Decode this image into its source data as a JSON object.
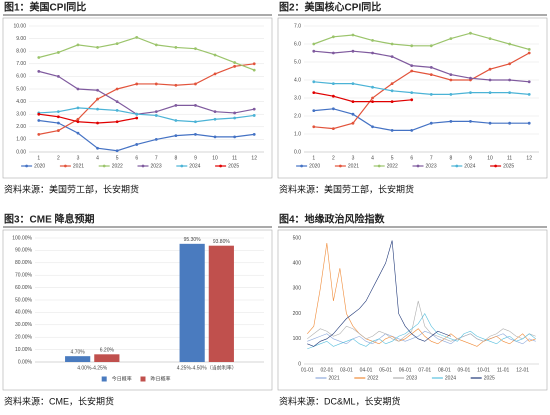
{
  "chart_data": [
    {
      "type": "line",
      "title": "图1：美国CPI同比",
      "source": "资料来源：美国劳工部，长安期货",
      "markers": true,
      "grid": true,
      "legend": "bottom",
      "categories": [
        "1",
        "2",
        "3",
        "4",
        "5",
        "6",
        "7",
        "8",
        "9",
        "10",
        "11",
        "12"
      ],
      "ylim": [
        0,
        10
      ],
      "yticks": [
        {
          "value": 0,
          "label": "0.00"
        },
        {
          "value": 1,
          "label": "1.00"
        },
        {
          "value": 2,
          "label": "2.00"
        },
        {
          "value": 3,
          "label": "3.00"
        },
        {
          "value": 4,
          "label": "4.00"
        },
        {
          "value": 5,
          "label": "5.00"
        },
        {
          "value": 6,
          "label": "6.00"
        },
        {
          "value": 7,
          "label": "7.00"
        },
        {
          "value": 8,
          "label": "8.00"
        },
        {
          "value": 9,
          "label": "9.00"
        },
        {
          "value": 10,
          "label": "10.00"
        }
      ],
      "series": [
        {
          "name": "2020",
          "color": "#4472c4",
          "values": [
            2.5,
            2.3,
            1.5,
            0.3,
            0.1,
            0.6,
            1.0,
            1.3,
            1.4,
            1.2,
            1.2,
            1.4
          ]
        },
        {
          "name": "2021",
          "color": "#e2533b",
          "values": [
            1.4,
            1.7,
            2.6,
            4.2,
            5.0,
            5.4,
            5.4,
            5.3,
            5.4,
            6.2,
            6.8,
            7.0
          ]
        },
        {
          "name": "2022",
          "color": "#9bc46b",
          "values": [
            7.5,
            7.9,
            8.5,
            8.3,
            8.6,
            9.1,
            8.5,
            8.3,
            8.2,
            7.7,
            7.1,
            6.5
          ]
        },
        {
          "name": "2023",
          "color": "#7f5a9e",
          "values": [
            6.4,
            6.0,
            5.0,
            4.9,
            4.0,
            3.0,
            3.2,
            3.7,
            3.7,
            3.2,
            3.1,
            3.4
          ]
        },
        {
          "name": "2024",
          "color": "#4bb3d6",
          "values": [
            3.1,
            3.2,
            3.5,
            3.4,
            3.3,
            3.0,
            2.9,
            2.5,
            2.4,
            2.6,
            2.7,
            2.9
          ]
        },
        {
          "name": "2025",
          "color": "#e00000",
          "values": [
            3.0,
            2.8,
            2.4,
            2.3,
            2.4,
            2.7,
            null,
            null,
            null,
            null,
            null,
            null
          ]
        }
      ]
    },
    {
      "type": "line",
      "title": "图2：美国核心CPI同比",
      "source": "资料来源：美国劳工部，长安期货",
      "markers": true,
      "grid": true,
      "legend": "bottom",
      "categories": [
        "1",
        "2",
        "3",
        "4",
        "5",
        "6",
        "7",
        "8",
        "9",
        "10",
        "11",
        "12"
      ],
      "ylim": [
        0,
        7
      ],
      "yticks": [
        {
          "value": 0,
          "label": "0.0"
        },
        {
          "value": 1,
          "label": "1.0"
        },
        {
          "value": 2,
          "label": "2.0"
        },
        {
          "value": 3,
          "label": "3.0"
        },
        {
          "value": 4,
          "label": "4.0"
        },
        {
          "value": 5,
          "label": "5.0"
        },
        {
          "value": 6,
          "label": "6.0"
        },
        {
          "value": 7,
          "label": "7.0"
        }
      ],
      "series": [
        {
          "name": "2020",
          "color": "#4472c4",
          "values": [
            2.3,
            2.4,
            2.1,
            1.4,
            1.2,
            1.2,
            1.6,
            1.7,
            1.7,
            1.6,
            1.6,
            1.6
          ]
        },
        {
          "name": "2021",
          "color": "#e2533b",
          "values": [
            1.4,
            1.3,
            1.6,
            3.0,
            3.8,
            4.5,
            4.3,
            4.0,
            4.0,
            4.6,
            4.9,
            5.5
          ]
        },
        {
          "name": "2022",
          "color": "#9bc46b",
          "values": [
            6.0,
            6.4,
            6.5,
            6.2,
            6.0,
            5.9,
            5.9,
            6.3,
            6.6,
            6.3,
            6.0,
            5.7
          ]
        },
        {
          "name": "2023",
          "color": "#7f5a9e",
          "values": [
            5.6,
            5.5,
            5.6,
            5.5,
            5.3,
            4.8,
            4.7,
            4.3,
            4.1,
            4.0,
            4.0,
            3.9
          ]
        },
        {
          "name": "2024",
          "color": "#4bb3d6",
          "values": [
            3.9,
            3.8,
            3.8,
            3.6,
            3.4,
            3.3,
            3.2,
            3.2,
            3.3,
            3.3,
            3.3,
            3.2
          ]
        },
        {
          "name": "2025",
          "color": "#e00000",
          "values": [
            3.3,
            3.1,
            2.8,
            2.8,
            2.8,
            2.9,
            null,
            null,
            null,
            null,
            null,
            null
          ]
        }
      ]
    },
    {
      "type": "bar",
      "title": "图3：CME 降息预期",
      "source": "资料来源：CME，长安期货",
      "grid": true,
      "legend": "bottom",
      "categories": [
        "4.00%-4.25%",
        "4.25%-4.50%（当前利率）"
      ],
      "ylim": [
        0,
        100
      ],
      "yticks": [
        {
          "value": 0,
          "label": "0.00%"
        },
        {
          "value": 10,
          "label": "10.00%"
        },
        {
          "value": 20,
          "label": "20.00%"
        },
        {
          "value": 30,
          "label": "30.00%"
        },
        {
          "value": 40,
          "label": "40.00%"
        },
        {
          "value": 50,
          "label": "50.00%"
        },
        {
          "value": 60,
          "label": "60.00%"
        },
        {
          "value": 70,
          "label": "70.00%"
        },
        {
          "value": 80,
          "label": "80.00%"
        },
        {
          "value": 90,
          "label": "90.00%"
        },
        {
          "value": 100,
          "label": "100.00%"
        }
      ],
      "series": [
        {
          "name": "今日概率",
          "color": "#4a7bbf",
          "values": [
            4.7,
            95.3
          ],
          "value_labels": [
            "4.70%",
            "95.30%"
          ]
        },
        {
          "name": "昨日概率",
          "color": "#c0504d",
          "values": [
            6.2,
            93.8
          ],
          "value_labels": [
            "6.20%",
            "93.80%"
          ]
        }
      ]
    },
    {
      "type": "line",
      "title": "图4：地缘政治风险指数",
      "source": "资料来源：DC&ML，长安期货",
      "markers": false,
      "grid": false,
      "legend": "bottom",
      "categories": [
        "01-01",
        null,
        null,
        "02-01",
        null,
        null,
        "03-01",
        null,
        null,
        "04-01",
        null,
        null,
        "05-01",
        null,
        null,
        "06-01",
        null,
        null,
        "07-01",
        null,
        null,
        "08-01",
        null,
        null,
        "09-01",
        null,
        null,
        "10-01",
        null,
        null,
        "11-01",
        null,
        null,
        "12-01",
        null,
        null
      ],
      "ylim": [
        0,
        500
      ],
      "yticks": [
        0,
        100,
        200,
        300,
        400,
        500
      ],
      "series": [
        {
          "name": "2021",
          "color": "#8faadc",
          "values": [
            90,
            100,
            110,
            120,
            100,
            90,
            80,
            100,
            110,
            90,
            80,
            100,
            120,
            110,
            100,
            90,
            100,
            110,
            130,
            120,
            100,
            90,
            80,
            100,
            110,
            120,
            100,
            90,
            100,
            110,
            120,
            100,
            90,
            80,
            100,
            90
          ]
        },
        {
          "name": "2022",
          "color": "#f08c3a",
          "values": [
            120,
            150,
            300,
            480,
            250,
            380,
            200,
            150,
            120,
            100,
            90,
            80,
            100,
            110,
            90,
            100,
            120,
            140,
            110,
            90,
            80,
            100,
            120,
            100,
            90,
            80,
            70,
            90,
            100,
            110,
            90,
            80,
            100,
            120,
            90,
            100
          ]
        },
        {
          "name": "2023",
          "color": "#b0b0b0",
          "values": [
            100,
            120,
            140,
            130,
            110,
            120,
            150,
            140,
            120,
            100,
            110,
            130,
            120,
            100,
            90,
            110,
            130,
            250,
            150,
            120,
            110,
            100,
            90,
            100,
            110,
            120,
            100,
            90,
            110,
            120,
            140,
            130,
            110,
            100,
            120,
            110
          ]
        },
        {
          "name": "2024",
          "color": "#5bc0de",
          "values": [
            60,
            70,
            80,
            90,
            70,
            80,
            90,
            100,
            80,
            70,
            90,
            100,
            80,
            90,
            110,
            120,
            140,
            160,
            200,
            150,
            120,
            110,
            100,
            90,
            120,
            130,
            110,
            100,
            90,
            80,
            100,
            110,
            90,
            100,
            120,
            100
          ]
        },
        {
          "name": "2025",
          "color": "#203878",
          "values": [
            80,
            70,
            90,
            100,
            120,
            150,
            180,
            200,
            220,
            250,
            300,
            350,
            400,
            490,
            200,
            150,
            120,
            100,
            90,
            110,
            130,
            120,
            110,
            null,
            null,
            null,
            null,
            null,
            null,
            null,
            null,
            null,
            null,
            null,
            null,
            null
          ]
        }
      ]
    }
  ]
}
